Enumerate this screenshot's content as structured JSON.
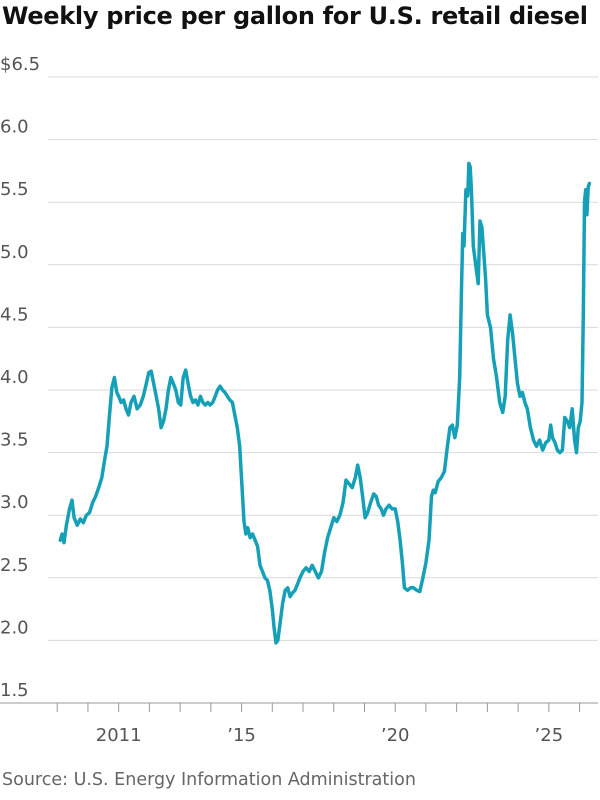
{
  "title": "Weekly price per gallon for U.S. retail diesel",
  "source": "Source: U.S. Energy Information Administration",
  "colors": {
    "line": "#16a0b8",
    "grid": "#d9d9d9",
    "axis": "#999999",
    "text": "#555555"
  },
  "chart_data": {
    "type": "line",
    "title": "Weekly price per gallon for U.S. retail diesel",
    "xlabel": "",
    "ylabel": "",
    "x_range": [
      2008.7,
      2026.6
    ],
    "ylim": [
      1.5,
      6.5
    ],
    "y_ticks": [
      {
        "value": 6.5,
        "label": "$6.5"
      },
      {
        "value": 6.0,
        "label": "6.0"
      },
      {
        "value": 5.5,
        "label": "5.5"
      },
      {
        "value": 5.0,
        "label": "5.0"
      },
      {
        "value": 4.5,
        "label": "4.5"
      },
      {
        "value": 4.0,
        "label": "4.0"
      },
      {
        "value": 3.5,
        "label": "3.5"
      },
      {
        "value": 3.0,
        "label": "3.0"
      },
      {
        "value": 2.5,
        "label": "2.5"
      },
      {
        "value": 2.0,
        "label": "2.0"
      },
      {
        "value": 1.5,
        "label": "1.5"
      }
    ],
    "x_ticks": [
      {
        "value": 2011,
        "label": "2011"
      },
      {
        "value": 2015,
        "label": "’15"
      },
      {
        "value": 2020,
        "label": "’20"
      },
      {
        "value": 2025,
        "label": "’25"
      }
    ],
    "x_axis_ticks": [
      2009,
      2010,
      2011,
      2012,
      2013,
      2014,
      2015,
      2016,
      2017,
      2018,
      2019,
      2020,
      2021,
      2022,
      2023,
      2024,
      2025,
      2026
    ],
    "grid": true,
    "legend": "none",
    "series": [
      {
        "points": [
          [
            2009.1,
            2.8
          ],
          [
            2009.16,
            2.85
          ],
          [
            2009.22,
            2.78
          ],
          [
            2009.3,
            2.92
          ],
          [
            2009.4,
            3.05
          ],
          [
            2009.48,
            3.12
          ],
          [
            2009.55,
            2.98
          ],
          [
            2009.65,
            2.92
          ],
          [
            2009.75,
            2.97
          ],
          [
            2009.85,
            2.94
          ],
          [
            2009.95,
            3.0
          ],
          [
            2010.05,
            3.02
          ],
          [
            2010.15,
            3.1
          ],
          [
            2010.25,
            3.15
          ],
          [
            2010.35,
            3.22
          ],
          [
            2010.45,
            3.3
          ],
          [
            2010.55,
            3.45
          ],
          [
            2010.62,
            3.55
          ],
          [
            2010.7,
            3.8
          ],
          [
            2010.78,
            4.02
          ],
          [
            2010.86,
            4.1
          ],
          [
            2010.94,
            3.98
          ],
          [
            2011.0,
            3.95
          ],
          [
            2011.08,
            3.9
          ],
          [
            2011.16,
            3.92
          ],
          [
            2011.24,
            3.85
          ],
          [
            2011.32,
            3.8
          ],
          [
            2011.4,
            3.9
          ],
          [
            2011.5,
            3.95
          ],
          [
            2011.6,
            3.85
          ],
          [
            2011.7,
            3.88
          ],
          [
            2011.8,
            3.95
          ],
          [
            2011.9,
            4.05
          ],
          [
            2011.98,
            4.14
          ],
          [
            2012.06,
            4.15
          ],
          [
            2012.14,
            4.05
          ],
          [
            2012.22,
            3.95
          ],
          [
            2012.3,
            3.85
          ],
          [
            2012.38,
            3.7
          ],
          [
            2012.46,
            3.75
          ],
          [
            2012.54,
            3.85
          ],
          [
            2012.62,
            4.0
          ],
          [
            2012.7,
            4.1
          ],
          [
            2012.78,
            4.05
          ],
          [
            2012.86,
            4.0
          ],
          [
            2012.94,
            3.9
          ],
          [
            2013.02,
            3.88
          ],
          [
            2013.1,
            4.1
          ],
          [
            2013.18,
            4.16
          ],
          [
            2013.26,
            4.05
          ],
          [
            2013.34,
            3.95
          ],
          [
            2013.42,
            3.9
          ],
          [
            2013.5,
            3.92
          ],
          [
            2013.58,
            3.88
          ],
          [
            2013.66,
            3.95
          ],
          [
            2013.74,
            3.9
          ],
          [
            2013.82,
            3.88
          ],
          [
            2013.9,
            3.9
          ],
          [
            2013.98,
            3.88
          ],
          [
            2014.06,
            3.9
          ],
          [
            2014.14,
            3.95
          ],
          [
            2014.22,
            4.0
          ],
          [
            2014.3,
            4.03
          ],
          [
            2014.38,
            4.0
          ],
          [
            2014.46,
            3.98
          ],
          [
            2014.54,
            3.95
          ],
          [
            2014.62,
            3.92
          ],
          [
            2014.7,
            3.9
          ],
          [
            2014.78,
            3.8
          ],
          [
            2014.86,
            3.7
          ],
          [
            2014.94,
            3.55
          ],
          [
            2015.02,
            3.2
          ],
          [
            2015.08,
            2.95
          ],
          [
            2015.14,
            2.85
          ],
          [
            2015.2,
            2.9
          ],
          [
            2015.28,
            2.82
          ],
          [
            2015.36,
            2.85
          ],
          [
            2015.44,
            2.8
          ],
          [
            2015.52,
            2.75
          ],
          [
            2015.6,
            2.6
          ],
          [
            2015.68,
            2.55
          ],
          [
            2015.76,
            2.5
          ],
          [
            2015.84,
            2.48
          ],
          [
            2015.92,
            2.4
          ],
          [
            2016.0,
            2.25
          ],
          [
            2016.06,
            2.1
          ],
          [
            2016.12,
            1.98
          ],
          [
            2016.18,
            2.0
          ],
          [
            2016.26,
            2.15
          ],
          [
            2016.34,
            2.3
          ],
          [
            2016.42,
            2.4
          ],
          [
            2016.5,
            2.42
          ],
          [
            2016.58,
            2.35
          ],
          [
            2016.66,
            2.38
          ],
          [
            2016.74,
            2.4
          ],
          [
            2016.82,
            2.45
          ],
          [
            2016.9,
            2.5
          ],
          [
            2017.0,
            2.55
          ],
          [
            2017.1,
            2.58
          ],
          [
            2017.2,
            2.55
          ],
          [
            2017.3,
            2.6
          ],
          [
            2017.4,
            2.55
          ],
          [
            2017.5,
            2.5
          ],
          [
            2017.6,
            2.55
          ],
          [
            2017.7,
            2.7
          ],
          [
            2017.8,
            2.82
          ],
          [
            2017.9,
            2.9
          ],
          [
            2018.0,
            2.98
          ],
          [
            2018.1,
            2.95
          ],
          [
            2018.2,
            3.0
          ],
          [
            2018.3,
            3.1
          ],
          [
            2018.4,
            3.28
          ],
          [
            2018.5,
            3.25
          ],
          [
            2018.6,
            3.22
          ],
          [
            2018.7,
            3.3
          ],
          [
            2018.78,
            3.4
          ],
          [
            2018.86,
            3.3
          ],
          [
            2018.94,
            3.15
          ],
          [
            2019.02,
            2.98
          ],
          [
            2019.1,
            3.02
          ],
          [
            2019.2,
            3.1
          ],
          [
            2019.3,
            3.17
          ],
          [
            2019.38,
            3.15
          ],
          [
            2019.46,
            3.08
          ],
          [
            2019.54,
            3.05
          ],
          [
            2019.62,
            3.0
          ],
          [
            2019.7,
            3.05
          ],
          [
            2019.8,
            3.08
          ],
          [
            2019.9,
            3.05
          ],
          [
            2020.0,
            3.05
          ],
          [
            2020.08,
            2.95
          ],
          [
            2020.16,
            2.8
          ],
          [
            2020.24,
            2.6
          ],
          [
            2020.3,
            2.42
          ],
          [
            2020.4,
            2.4
          ],
          [
            2020.5,
            2.42
          ],
          [
            2020.6,
            2.42
          ],
          [
            2020.7,
            2.4
          ],
          [
            2020.8,
            2.39
          ],
          [
            2020.9,
            2.5
          ],
          [
            2021.0,
            2.62
          ],
          [
            2021.1,
            2.8
          ],
          [
            2021.18,
            3.15
          ],
          [
            2021.24,
            3.2
          ],
          [
            2021.3,
            3.18
          ],
          [
            2021.4,
            3.27
          ],
          [
            2021.5,
            3.3
          ],
          [
            2021.6,
            3.35
          ],
          [
            2021.7,
            3.55
          ],
          [
            2021.78,
            3.7
          ],
          [
            2021.86,
            3.72
          ],
          [
            2021.94,
            3.62
          ],
          [
            2022.02,
            3.72
          ],
          [
            2022.1,
            4.1
          ],
          [
            2022.16,
            4.85
          ],
          [
            2022.2,
            5.25
          ],
          [
            2022.24,
            5.15
          ],
          [
            2022.3,
            5.6
          ],
          [
            2022.36,
            5.55
          ],
          [
            2022.4,
            5.81
          ],
          [
            2022.44,
            5.78
          ],
          [
            2022.48,
            5.6
          ],
          [
            2022.54,
            5.15
          ],
          [
            2022.62,
            5.0
          ],
          [
            2022.7,
            4.85
          ],
          [
            2022.76,
            5.35
          ],
          [
            2022.82,
            5.3
          ],
          [
            2022.88,
            5.1
          ],
          [
            2022.94,
            4.9
          ],
          [
            2023.0,
            4.6
          ],
          [
            2023.1,
            4.5
          ],
          [
            2023.2,
            4.25
          ],
          [
            2023.3,
            4.1
          ],
          [
            2023.4,
            3.9
          ],
          [
            2023.5,
            3.82
          ],
          [
            2023.58,
            3.95
          ],
          [
            2023.66,
            4.4
          ],
          [
            2023.74,
            4.6
          ],
          [
            2023.82,
            4.45
          ],
          [
            2023.9,
            4.25
          ],
          [
            2023.98,
            4.05
          ],
          [
            2024.06,
            3.95
          ],
          [
            2024.14,
            3.98
          ],
          [
            2024.22,
            3.9
          ],
          [
            2024.3,
            3.85
          ],
          [
            2024.4,
            3.7
          ],
          [
            2024.5,
            3.6
          ],
          [
            2024.6,
            3.55
          ],
          [
            2024.7,
            3.6
          ],
          [
            2024.8,
            3.52
          ],
          [
            2024.9,
            3.58
          ],
          [
            2025.0,
            3.6
          ],
          [
            2025.06,
            3.72
          ],
          [
            2025.12,
            3.62
          ],
          [
            2025.2,
            3.58
          ],
          [
            2025.28,
            3.52
          ],
          [
            2025.36,
            3.5
          ],
          [
            2025.44,
            3.52
          ],
          [
            2025.52,
            3.78
          ],
          [
            2025.6,
            3.75
          ],
          [
            2025.68,
            3.7
          ],
          [
            2025.76,
            3.85
          ],
          [
            2025.84,
            3.6
          ],
          [
            2025.9,
            3.5
          ],
          [
            2025.96,
            3.7
          ],
          [
            2026.02,
            3.75
          ],
          [
            2026.08,
            3.9
          ],
          [
            2026.12,
            4.6
          ],
          [
            2026.16,
            5.5
          ],
          [
            2026.2,
            5.6
          ],
          [
            2026.24,
            5.4
          ],
          [
            2026.28,
            5.62
          ],
          [
            2026.32,
            5.65
          ]
        ]
      }
    ]
  }
}
